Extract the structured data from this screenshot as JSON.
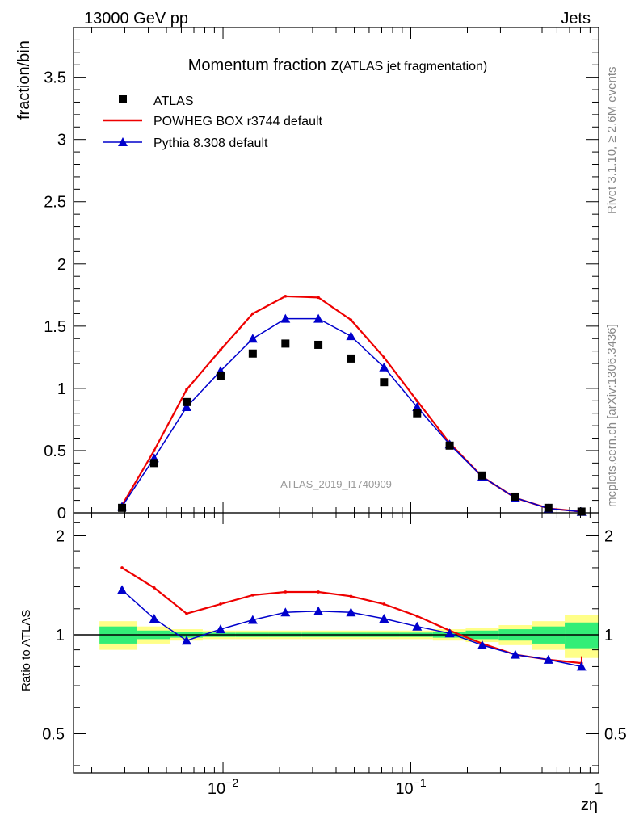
{
  "header": {
    "left": "13000 GeV pp",
    "right": "Jets"
  },
  "side_labels": {
    "rivet": "Rivet 3.1.10, ≥ 2.6M events",
    "mcplots": "mcplots.cern.ch [arXiv:1306.3436]"
  },
  "main_panel": {
    "title_main": "Momentum fraction z",
    "title_sub": "(ATLAS jet fragmentation)",
    "ylabel": "fraction/bin",
    "watermark": "ATLAS_2019_I1740909"
  },
  "ratio_panel": {
    "ylabel": "Ratio to ATLAS"
  },
  "xlabel": "zη",
  "colors": {
    "data": "#000000",
    "powheg": "#ee0000",
    "pythia": "#0000cc",
    "band_inner": "#33ee77",
    "band_outer": "#ffff88"
  },
  "chart_data": [
    {
      "type": "line",
      "panel": "main",
      "xscale": "log",
      "xlim": [
        0.0016,
        1
      ],
      "ylim": [
        0,
        3.9
      ],
      "yticks": [
        0,
        0.5,
        1,
        1.5,
        2,
        2.5,
        3,
        3.5
      ],
      "ytick_labels": [
        "0",
        "0.5",
        "1",
        "1.5",
        "2",
        "2.5",
        "3",
        "3.5"
      ],
      "xticks": [
        0.01,
        0.1,
        1
      ],
      "xtick_labels": [
        "10",
        "10",
        "1"
      ],
      "xtick_exponents": [
        "−2",
        "−1",
        ""
      ],
      "x": [
        0.0029,
        0.0043,
        0.0064,
        0.0097,
        0.0144,
        0.0215,
        0.0322,
        0.048,
        0.072,
        0.108,
        0.161,
        0.24,
        0.36,
        0.54,
        0.81
      ],
      "series": [
        {
          "name": "ATLAS",
          "marker": "square",
          "values": [
            0.04,
            0.4,
            0.89,
            1.1,
            1.28,
            1.36,
            1.35,
            1.24,
            1.05,
            0.8,
            0.54,
            0.3,
            0.13,
            0.04,
            0.01
          ]
        },
        {
          "name": "POWHEG BOX r3744 default",
          "marker": "line",
          "values": [
            0.06,
            0.5,
            0.99,
            1.31,
            1.6,
            1.74,
            1.73,
            1.55,
            1.25,
            0.9,
            0.56,
            0.29,
            0.12,
            0.035,
            0.0095
          ]
        },
        {
          "name": "Pythia 8.308 default",
          "marker": "triangle",
          "values": [
            0.05,
            0.44,
            0.85,
            1.14,
            1.4,
            1.56,
            1.56,
            1.42,
            1.17,
            0.85,
            0.55,
            0.29,
            0.12,
            0.035,
            0.008
          ]
        }
      ]
    },
    {
      "type": "line",
      "panel": "ratio",
      "xscale": "log",
      "ylim": [
        0.38,
        2.35
      ],
      "yscale": "log",
      "yticks": [
        0.5,
        1,
        2
      ],
      "ytick_labels": [
        "0.5",
        "1",
        "2"
      ],
      "x": [
        0.0029,
        0.0043,
        0.0064,
        0.0097,
        0.0144,
        0.0215,
        0.0322,
        0.048,
        0.072,
        0.108,
        0.161,
        0.24,
        0.36,
        0.54,
        0.81
      ],
      "series": [
        {
          "name": "POWHEG BOX r3744 default",
          "values": [
            1.6,
            1.39,
            1.16,
            1.24,
            1.32,
            1.35,
            1.35,
            1.31,
            1.24,
            1.14,
            1.03,
            0.94,
            0.87,
            0.84,
            0.82
          ]
        },
        {
          "name": "Pythia 8.308 default",
          "values": [
            1.37,
            1.12,
            0.96,
            1.04,
            1.11,
            1.17,
            1.18,
            1.17,
            1.12,
            1.06,
            1.01,
            0.93,
            0.87,
            0.84,
            0.8
          ]
        }
      ],
      "uncertainty_bands": {
        "bin_edges": [
          0.0022,
          0.0035,
          0.0052,
          0.0078,
          0.0117,
          0.0175,
          0.0262,
          0.039,
          0.058,
          0.087,
          0.131,
          0.196,
          0.294,
          0.441,
          0.66,
          1.0
        ],
        "inner": [
          0.06,
          0.03,
          0.02,
          0.015,
          0.015,
          0.015,
          0.015,
          0.015,
          0.015,
          0.015,
          0.02,
          0.03,
          0.04,
          0.06,
          0.09
        ],
        "outer": [
          0.1,
          0.06,
          0.04,
          0.03,
          0.03,
          0.03,
          0.03,
          0.03,
          0.03,
          0.03,
          0.04,
          0.05,
          0.07,
          0.1,
          0.15
        ]
      }
    }
  ]
}
